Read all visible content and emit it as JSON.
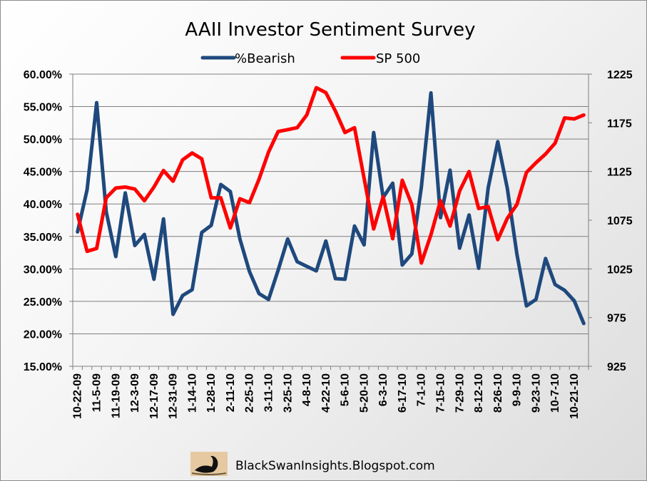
{
  "chart_data": {
    "type": "line",
    "title": "AAII Investor Sentiment Survey",
    "x": [
      "10-22-09",
      "10-29-09",
      "11-5-09",
      "11-12-09",
      "11-19-09",
      "11-26-09",
      "12-3-09",
      "12-10-09",
      "12-17-09",
      "12-24-09",
      "12-31-09",
      "1-7-10",
      "1-14-10",
      "1-21-10",
      "1-28-10",
      "2-4-10",
      "2-11-10",
      "2-18-10",
      "2-25-10",
      "3-4-10",
      "3-11-10",
      "3-18-10",
      "3-25-10",
      "4-1-10",
      "4-8-10",
      "4-15-10",
      "4-22-10",
      "4-29-10",
      "5-6-10",
      "5-13-10",
      "5-20-10",
      "5-27-10",
      "6-3-10",
      "6-10-10",
      "6-17-10",
      "6-24-10",
      "7-1-10",
      "7-8-10",
      "7-15-10",
      "7-22-10",
      "7-29-10",
      "8-5-10",
      "8-12-10",
      "8-19-10",
      "8-26-10",
      "9-2-10",
      "9-9-10",
      "9-16-10",
      "9-23-10",
      "9-30-10",
      "10-7-10",
      "10-14-10",
      "10-21-10",
      "10-28-10"
    ],
    "x_tick_labels": [
      "10-22-09",
      "11-5-09",
      "11-19-09",
      "12-3-09",
      "12-17-09",
      "12-31-09",
      "1-14-10",
      "1-28-10",
      "2-11-10",
      "2-25-10",
      "3-11-10",
      "3-25-10",
      "4-8-10",
      "4-22-10",
      "5-6-10",
      "5-20-10",
      "6-3-10",
      "6-17-10",
      "7-1-10",
      "7-15-10",
      "7-29-10",
      "8-12-10",
      "8-26-10",
      "9-9-10",
      "9-23-10",
      "10-7-10",
      "10-21-10"
    ],
    "series": [
      {
        "name": "%Bearish",
        "axis": "left",
        "color": "#1f497d",
        "values": [
          35.7,
          42.2,
          55.6,
          38.8,
          31.9,
          41.7,
          33.6,
          35.3,
          28.4,
          37.7,
          23.0,
          25.9,
          26.8,
          35.6,
          36.7,
          43.0,
          41.9,
          34.6,
          29.6,
          26.2,
          25.3,
          29.8,
          34.6,
          31.1,
          30.4,
          29.7,
          34.3,
          28.5,
          28.4,
          36.6,
          33.7,
          51.0,
          41.0,
          43.2,
          30.6,
          32.3,
          42.6,
          57.1,
          37.9,
          45.2,
          33.2,
          38.3,
          30.1,
          42.5,
          49.6,
          42.4,
          32.3,
          24.3,
          25.3,
          31.6,
          27.6,
          26.7,
          25.1,
          21.6
        ]
      },
      {
        "name": "SP 500",
        "axis": "right",
        "color": "#ff0000",
        "values": [
          1081,
          1043,
          1046,
          1098,
          1108,
          1109,
          1107,
          1095,
          1109,
          1126,
          1115,
          1137,
          1144,
          1138,
          1098,
          1098,
          1067,
          1097,
          1093,
          1117,
          1145,
          1166,
          1168,
          1170,
          1183,
          1211,
          1206,
          1187,
          1165,
          1170,
          1118,
          1066,
          1099,
          1056,
          1116,
          1091,
          1031,
          1060,
          1095,
          1069,
          1105,
          1125,
          1087,
          1089,
          1055,
          1077,
          1091,
          1124,
          1134,
          1143,
          1154,
          1180,
          1179,
          1183
        ]
      }
    ],
    "y_left": {
      "min": 15,
      "max": 60,
      "step": 5,
      "format": "percent",
      "tick_labels": [
        "60.00%",
        "55.00%",
        "50.00%",
        "45.00%",
        "40.00%",
        "35.00%",
        "30.00%",
        "25.00%",
        "20.00%",
        "15.00%"
      ]
    },
    "y_right": {
      "min": 925,
      "max": 1225,
      "step": 50,
      "tick_labels": [
        "1225",
        "1175",
        "1125",
        "1075",
        "1025",
        "975",
        "925"
      ]
    },
    "grid": true,
    "legend_position": "top-center"
  },
  "footer": {
    "text": "BlackSwanInsights.Blogspot.com",
    "logo": "black-swan-logo"
  }
}
